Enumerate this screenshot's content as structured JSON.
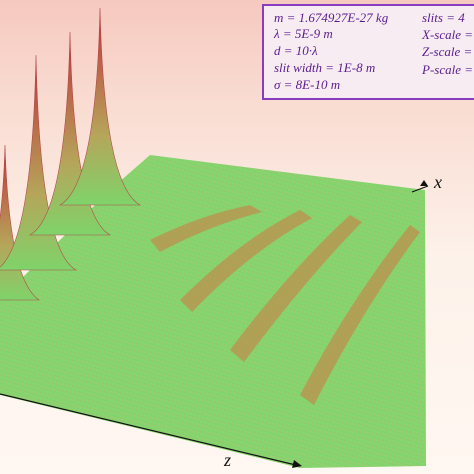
{
  "title": "",
  "legend_box": {
    "mass": "m = 1.674927E-27 kg",
    "wavelength": "λ = 5E-9 m",
    "spacing": "d = 10·λ",
    "slit_width": "slit width = 1E-8 m",
    "sigma": "σ = 8E-10 m",
    "slits": "slits = 4",
    "x_scale": "X-scale =",
    "z_scale": "Z-scale =",
    "p_scale": "P-scale ="
  },
  "axes": {
    "x_label": "x",
    "z_label": "z"
  },
  "colors": {
    "surface_low": "#7fd36a",
    "surface_peak": "#c0303a",
    "mesh_line": "#c47a55",
    "frame": "#8a3cc0",
    "axis": "#111111"
  },
  "surface": {
    "type": "3d-wireframe-surface",
    "spikes": 4,
    "ridges": 4
  }
}
